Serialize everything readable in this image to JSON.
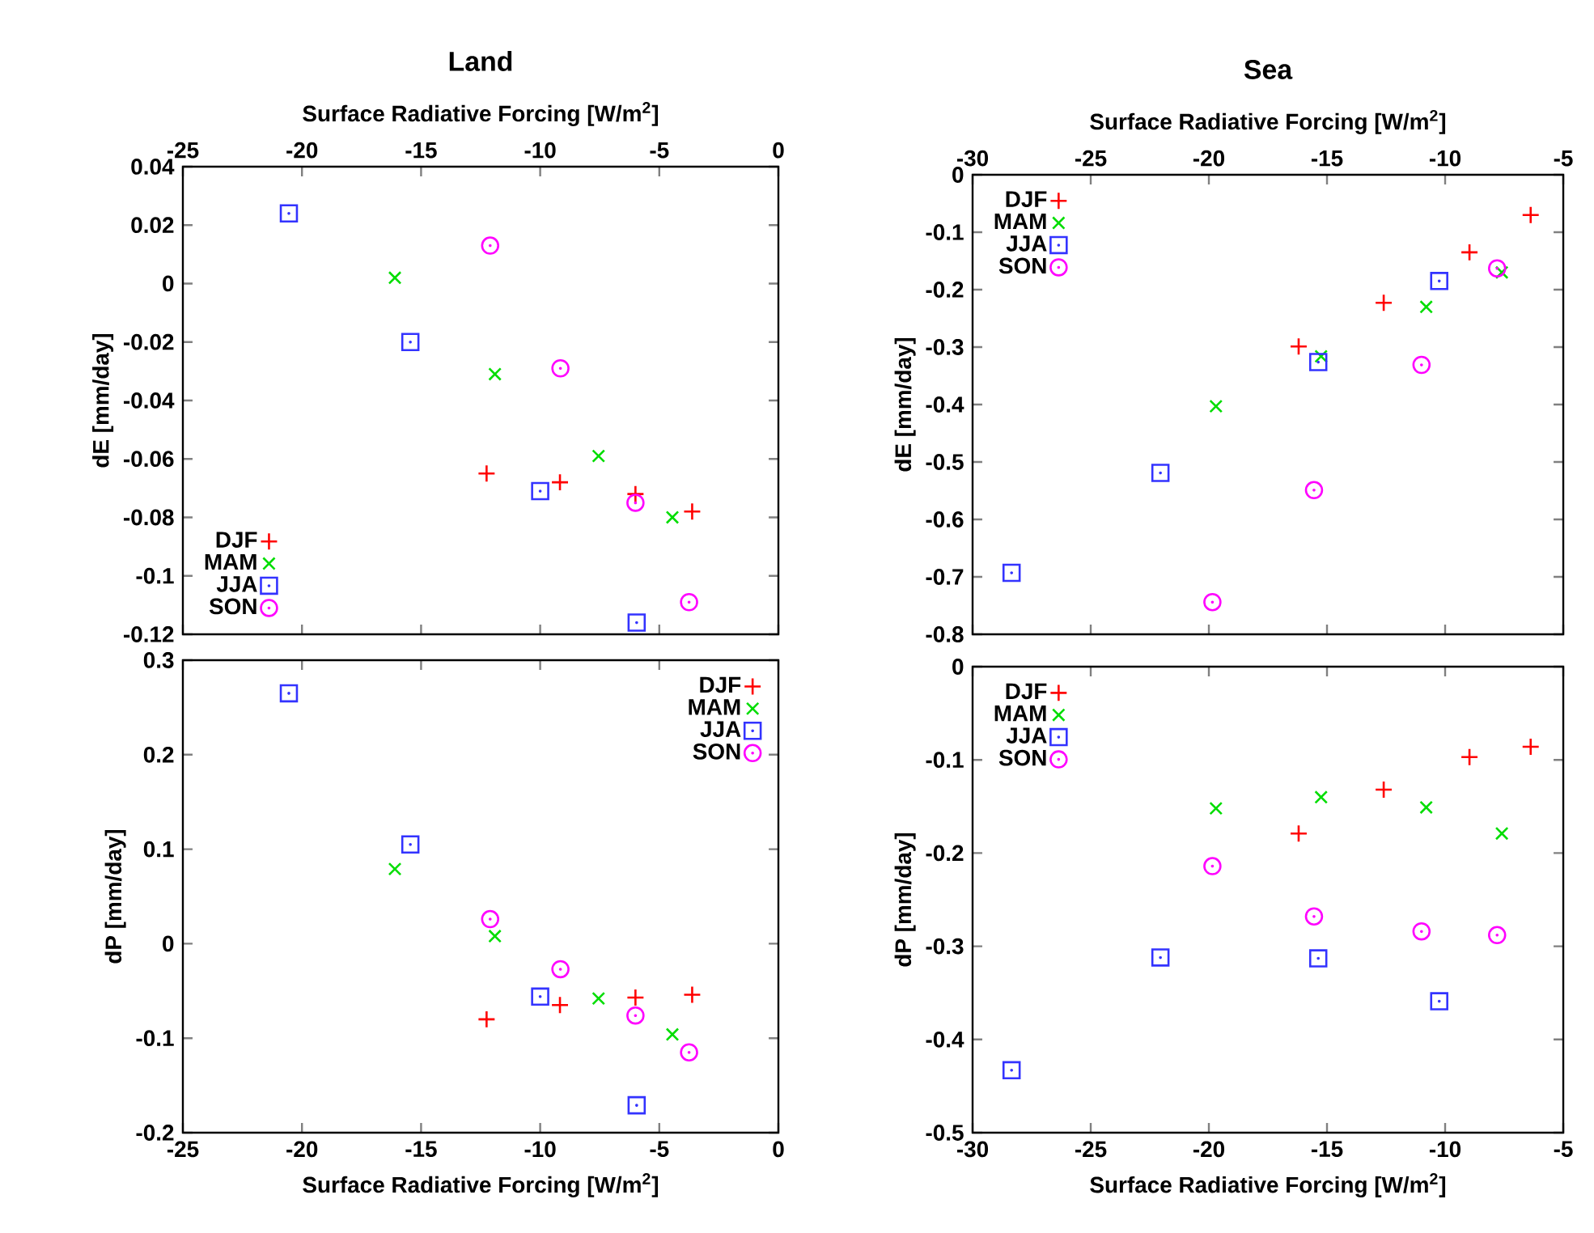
{
  "chart_data": [
    {
      "type": "scatter",
      "title": "Land",
      "xlabel": "Surface Radiative Forcing [W/m$^{2}$]",
      "ylabel": "dE [mm/day]",
      "xlim": [
        -25,
        0
      ],
      "xticks": [
        -25,
        -20,
        -15,
        -10,
        -5,
        0
      ],
      "ylim": [
        -0.12,
        0.04
      ],
      "yticks": [
        -0.12,
        -0.1,
        -0.08,
        -0.06,
        -0.04,
        -0.02,
        0,
        0.02,
        0.04
      ],
      "legend": "bottom left",
      "grid": false,
      "series": [
        {
          "name": "DJF",
          "color": "#ff0000",
          "marker": "plus",
          "x": [
            -12.25,
            -9.17,
            -6.0,
            -3.62
          ],
          "values": [
            -0.065,
            -0.068,
            -0.072,
            -0.078
          ]
        },
        {
          "name": "MAM",
          "color": "#00dd00",
          "marker": "cross",
          "x": [
            -16.1,
            -11.9,
            -7.55,
            -4.45
          ],
          "values": [
            0.002,
            -0.031,
            -0.059,
            -0.08
          ]
        },
        {
          "name": "JJA",
          "color": "#3333ff",
          "marker": "square",
          "x": [
            -20.55,
            -15.45,
            -10.0,
            -5.95
          ],
          "values": [
            0.024,
            -0.02,
            -0.071,
            -0.116
          ]
        },
        {
          "name": "SON",
          "color": "#ff00ff",
          "marker": "circle",
          "x": [
            -12.1,
            -9.15,
            -6.0,
            -3.75
          ],
          "values": [
            0.013,
            -0.029,
            -0.075,
            -0.109
          ]
        }
      ]
    },
    {
      "type": "scatter",
      "title": "Sea",
      "xlabel": "Surface Radiative Forcing [W/m$^{2}$]",
      "ylabel": "dE [mm/day]",
      "xlim": [
        -30,
        -5
      ],
      "xticks": [
        -30,
        -25,
        -20,
        -15,
        -10,
        -5
      ],
      "ylim": [
        -0.8,
        0
      ],
      "yticks": [
        -0.8,
        -0.7,
        -0.6,
        -0.5,
        -0.4,
        -0.3,
        -0.2,
        -0.1,
        0
      ],
      "legend": "top left",
      "grid": false,
      "series": [
        {
          "name": "DJF",
          "color": "#ff0000",
          "marker": "plus",
          "x": [
            -16.2,
            -12.6,
            -8.97,
            -6.38
          ],
          "values": [
            -0.299,
            -0.223,
            -0.135,
            -0.07
          ]
        },
        {
          "name": "MAM",
          "color": "#00dd00",
          "marker": "cross",
          "x": [
            -19.7,
            -15.25,
            -10.8,
            -7.6
          ],
          "values": [
            -0.403,
            -0.316,
            -0.23,
            -0.17
          ]
        },
        {
          "name": "JJA",
          "color": "#3333ff",
          "marker": "square",
          "x": [
            -28.35,
            -22.05,
            -15.37,
            -10.25
          ],
          "values": [
            -0.693,
            -0.519,
            -0.326,
            -0.185
          ]
        },
        {
          "name": "SON",
          "color": "#ff00ff",
          "marker": "circle",
          "x": [
            -19.85,
            -15.55,
            -11.0,
            -7.8
          ],
          "values": [
            -0.744,
            -0.549,
            -0.331,
            -0.163
          ]
        }
      ]
    },
    {
      "type": "scatter",
      "xlabel": "Surface Radiative Forcing [W/m$^{2}$]",
      "ylabel": "dP [mm/day]",
      "xlim": [
        -25,
        0
      ],
      "xticks": [
        -25,
        -20,
        -15,
        -10,
        -5,
        0
      ],
      "ylim": [
        -0.2,
        0.3
      ],
      "yticks": [
        -0.2,
        -0.1,
        0,
        0.1,
        0.2,
        0.3
      ],
      "legend": "top right",
      "grid": false,
      "series": [
        {
          "name": "DJF",
          "color": "#ff0000",
          "marker": "plus",
          "x": [
            -12.25,
            -9.17,
            -6.0,
            -3.62
          ],
          "values": [
            -0.08,
            -0.065,
            -0.057,
            -0.054
          ]
        },
        {
          "name": "MAM",
          "color": "#00dd00",
          "marker": "cross",
          "x": [
            -16.1,
            -11.9,
            -7.55,
            -4.45
          ],
          "values": [
            0.079,
            0.008,
            -0.058,
            -0.096
          ]
        },
        {
          "name": "JJA",
          "color": "#3333ff",
          "marker": "square",
          "x": [
            -20.55,
            -15.45,
            -10.0,
            -5.95
          ],
          "values": [
            0.265,
            0.105,
            -0.056,
            -0.171
          ]
        },
        {
          "name": "SON",
          "color": "#ff00ff",
          "marker": "circle",
          "x": [
            -12.1,
            -9.15,
            -6.0,
            -3.75
          ],
          "values": [
            0.026,
            -0.027,
            -0.076,
            -0.115
          ]
        }
      ]
    },
    {
      "type": "scatter",
      "xlabel": "Surface Radiative Forcing [W/m$^{2}$]",
      "ylabel": "dP [mm/day]",
      "xlim": [
        -30,
        -5
      ],
      "xticks": [
        -30,
        -25,
        -20,
        -15,
        -10,
        -5
      ],
      "ylim": [
        -0.5,
        0
      ],
      "yticks": [
        -0.5,
        -0.4,
        -0.3,
        -0.2,
        -0.1,
        0
      ],
      "legend": "top left",
      "grid": false,
      "series": [
        {
          "name": "DJF",
          "color": "#ff0000",
          "marker": "plus",
          "x": [
            -16.2,
            -12.6,
            -8.97,
            -6.38
          ],
          "values": [
            -0.179,
            -0.132,
            -0.097,
            -0.086
          ]
        },
        {
          "name": "MAM",
          "color": "#00dd00",
          "marker": "cross",
          "x": [
            -19.7,
            -15.25,
            -10.8,
            -7.6
          ],
          "values": [
            -0.152,
            -0.14,
            -0.151,
            -0.179
          ]
        },
        {
          "name": "JJA",
          "color": "#3333ff",
          "marker": "square",
          "x": [
            -28.35,
            -22.05,
            -15.37,
            -10.25
          ],
          "values": [
            -0.433,
            -0.312,
            -0.313,
            -0.359
          ]
        },
        {
          "name": "SON",
          "color": "#ff00ff",
          "marker": "circle",
          "x": [
            -19.85,
            -15.55,
            -11.0,
            -7.8
          ],
          "values": [
            -0.214,
            -0.268,
            -0.284,
            -0.288
          ]
        }
      ]
    }
  ]
}
